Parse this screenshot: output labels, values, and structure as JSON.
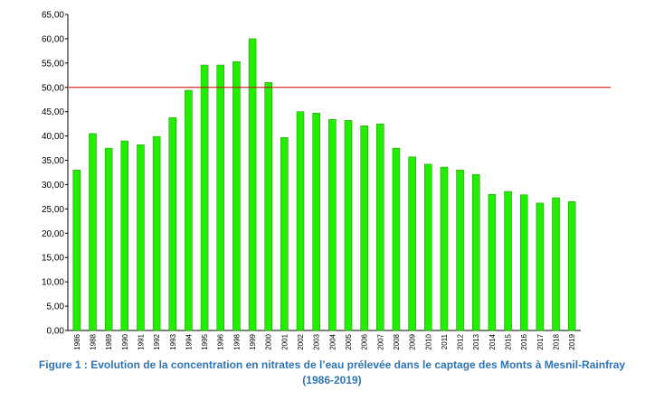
{
  "chart_data": {
    "type": "bar",
    "title": "Figure 1 : Evolution de la concentration en nitrates de l’eau prélevée dans le captage des Monts à Mesnil-Rainfray",
    "subtitle": "(1986-2019)",
    "categories": [
      "1986",
      "1988",
      "1989",
      "1990",
      "1991",
      "1992",
      "1993",
      "1994",
      "1995",
      "1996",
      "1998",
      "1999",
      "2000",
      "2001",
      "2002",
      "2003",
      "2004",
      "2005",
      "2006",
      "2007",
      "2008",
      "2009",
      "2010",
      "2011",
      "2012",
      "2013",
      "2014",
      "2015",
      "2016",
      "2017",
      "2018",
      "2019"
    ],
    "values": [
      33,
      40.5,
      37.5,
      39,
      38.2,
      39.9,
      43.8,
      49.4,
      54.6,
      54.6,
      55.3,
      60,
      51,
      39.7,
      45,
      44.7,
      43.4,
      43.2,
      42.1,
      42.5,
      37.5,
      35.7,
      34.2,
      33.6,
      33,
      32.1,
      28,
      28.6,
      27.9,
      26.2,
      27.3,
      26.5
    ],
    "color": "#22ee00",
    "threshold": 50,
    "threshold_color": "#cc0000",
    "ylim": [
      0,
      65
    ],
    "yticks": [
      {
        "value": 0,
        "label": "0,00"
      },
      {
        "value": 5,
        "label": "5,00"
      },
      {
        "value": 10,
        "label": "10,00"
      },
      {
        "value": 15,
        "label": "15,00"
      },
      {
        "value": 20,
        "label": "20,00"
      },
      {
        "value": 25,
        "label": "25,00"
      },
      {
        "value": 30,
        "label": "30,00"
      },
      {
        "value": 35,
        "label": "35,00"
      },
      {
        "value": 40,
        "label": "40,00"
      },
      {
        "value": 45,
        "label": "45,00"
      },
      {
        "value": 50,
        "label": "50,00"
      },
      {
        "value": 55,
        "label": "55,00"
      },
      {
        "value": 60,
        "label": "60,00"
      },
      {
        "value": 65,
        "label": "65,00"
      }
    ],
    "grid": false
  }
}
